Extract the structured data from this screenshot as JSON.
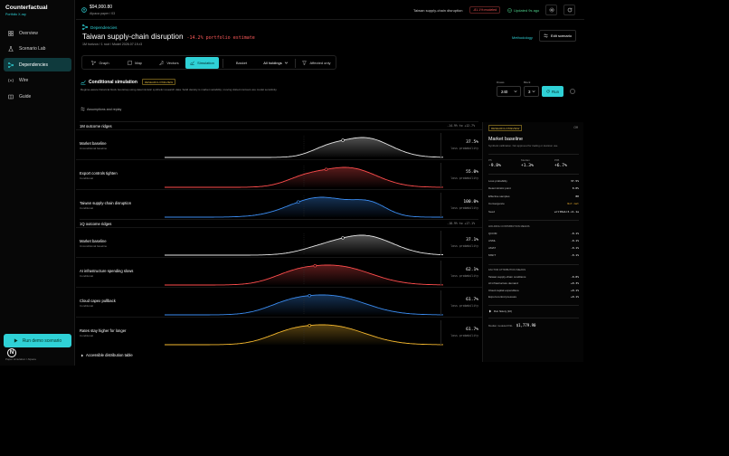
{
  "brand": {
    "title": "Counterfactual",
    "subtitle": "Portfolio X-ray"
  },
  "nav": [
    {
      "label": "Overview",
      "icon": "grid-icon"
    },
    {
      "label": "Scenario Lab",
      "icon": "flask-icon"
    },
    {
      "label": "Dependencies",
      "icon": "network-icon",
      "active": true
    },
    {
      "label": "Wire",
      "icon": "antenna-icon"
    },
    {
      "label": "Guide",
      "icon": "book-icon"
    }
  ],
  "demo_button": "Run demo scenario",
  "footer_note": "Paper simulation / Alpaca",
  "topbar": {
    "balance": "$94,000.80",
    "account": "Alpaca paper / 03",
    "scenario": "Taiwan supply-chain disruption",
    "pill": "-81.1% modeled",
    "updated": "Updated 9s ago"
  },
  "header": {
    "crumb": "Dependencies",
    "title": "Taiwan supply-chain disruption",
    "return": "-14.2% portfolio estimate",
    "meta": "1M horizon  /  1 root  /  Model 2026.07.19-r3",
    "methodology": "Methodology",
    "edit": "Edit scenario"
  },
  "tabs": [
    {
      "label": "Graph",
      "icon": "graph-icon"
    },
    {
      "label": "Map",
      "icon": "map-icon"
    },
    {
      "label": "Vectors",
      "icon": "vectors-icon"
    },
    {
      "label": "Simulation",
      "icon": "chart-icon",
      "active": true
    },
    {
      "label": "Basket"
    },
    {
      "label": "All holdings"
    },
    {
      "label": "Affected only",
      "icon": "filter-icon"
    }
  ],
  "sim": {
    "title": "Conditional simulation",
    "badge": "RESEARCH PREVIEW",
    "desc": "Regime-aware historical block bootstrap using deterministic synthetic research data. Solid density is market variability; moving dotted contours are model sensitivity.",
    "assumptions": "Assumptions and replay",
    "draws_label": "Draws",
    "draws": "240",
    "block_label": "Block",
    "block": "3",
    "run": "Run",
    "accessible": "Accessible distribution table"
  },
  "groups": [
    {
      "title": "1M outcome ridges",
      "range": "-14.9% to +12.7%",
      "rows": [
        {
          "name": "Market baseline",
          "sub": "Unconditional baseline",
          "value": "37.5%",
          "label": "loss probability",
          "color": "#e6e6e6"
        },
        {
          "name": "Export controls tighten",
          "sub": "Conditional",
          "value": "55.0%",
          "label": "loss probability",
          "color": "#ff4d4d"
        },
        {
          "name": "Taiwan supply-chain disruption",
          "sub": "Conditional",
          "value": "100.0%",
          "label": "loss probability",
          "color": "#3b8cf0"
        }
      ]
    },
    {
      "title": "1Q outcome ridges",
      "range": "-18.9% to +17.1%",
      "rows": [
        {
          "name": "Market baseline",
          "sub": "Unconditional baseline",
          "value": "37.1%",
          "label": "loss probability",
          "color": "#e6e6e6"
        },
        {
          "name": "AI infrastructure spending slows",
          "sub": "Conditional",
          "value": "62.1%",
          "label": "loss probability",
          "color": "#ff4d4d"
        },
        {
          "name": "Cloud capex pullback",
          "sub": "Conditional",
          "value": "61.7%",
          "label": "loss probability",
          "color": "#3b8cf0"
        },
        {
          "name": "Rates stay higher for longer",
          "sub": "Conditional",
          "value": "61.7%",
          "label": "loss probability",
          "color": "#f5b82e"
        }
      ]
    }
  ],
  "panel": {
    "badge": "RESEARCH PREVIEW",
    "close": "Off",
    "title": "Market baseline",
    "desc": "Synthetic calibration. Not approved for trading or decision use.",
    "p5_label": "P5",
    "p5": "-9.8%",
    "median_label": "Median",
    "median": "+1.3%",
    "p95_label": "P95",
    "p95": "+6.7%",
    "stats": [
      {
        "k": "Loss probability",
        "v": "37.5%"
      },
      {
        "k": "Deterministic point",
        "v": "0.0%"
      },
      {
        "k": "Effective samples",
        "v": "80"
      },
      {
        "k": "Convergence",
        "v": "Not met",
        "warn": true
      },
      {
        "k": "Seed",
        "v": "writ0a1c3-v1.1e"
      }
    ],
    "holdings_title": "HOLDING CONTRIBUTION MEANS",
    "holdings": [
      {
        "k": "QCOM",
        "v": "-0.1%"
      },
      {
        "k": "ASML",
        "v": "-0.1%"
      },
      {
        "k": "AMAT",
        "v": "-0.1%"
      },
      {
        "k": "MSFT",
        "v": "-0.1%"
      }
    ],
    "factors_title": "FACTOR ATTRIBUTION MEANS",
    "factors": [
      {
        "k": "Taiwan supply-chain conditions",
        "v": "-0.0%"
      },
      {
        "k": "AI infrastructure demand",
        "v": "+0.3%"
      },
      {
        "k": "Cloud capital expenditure",
        "v": "+0.1%"
      },
      {
        "k": "Export-control pressure",
        "v": "+0.1%"
      }
    ],
    "history": "Run history (10)",
    "pnl_label": "Median modeled P&L",
    "pnl": "$1,779.90"
  }
}
